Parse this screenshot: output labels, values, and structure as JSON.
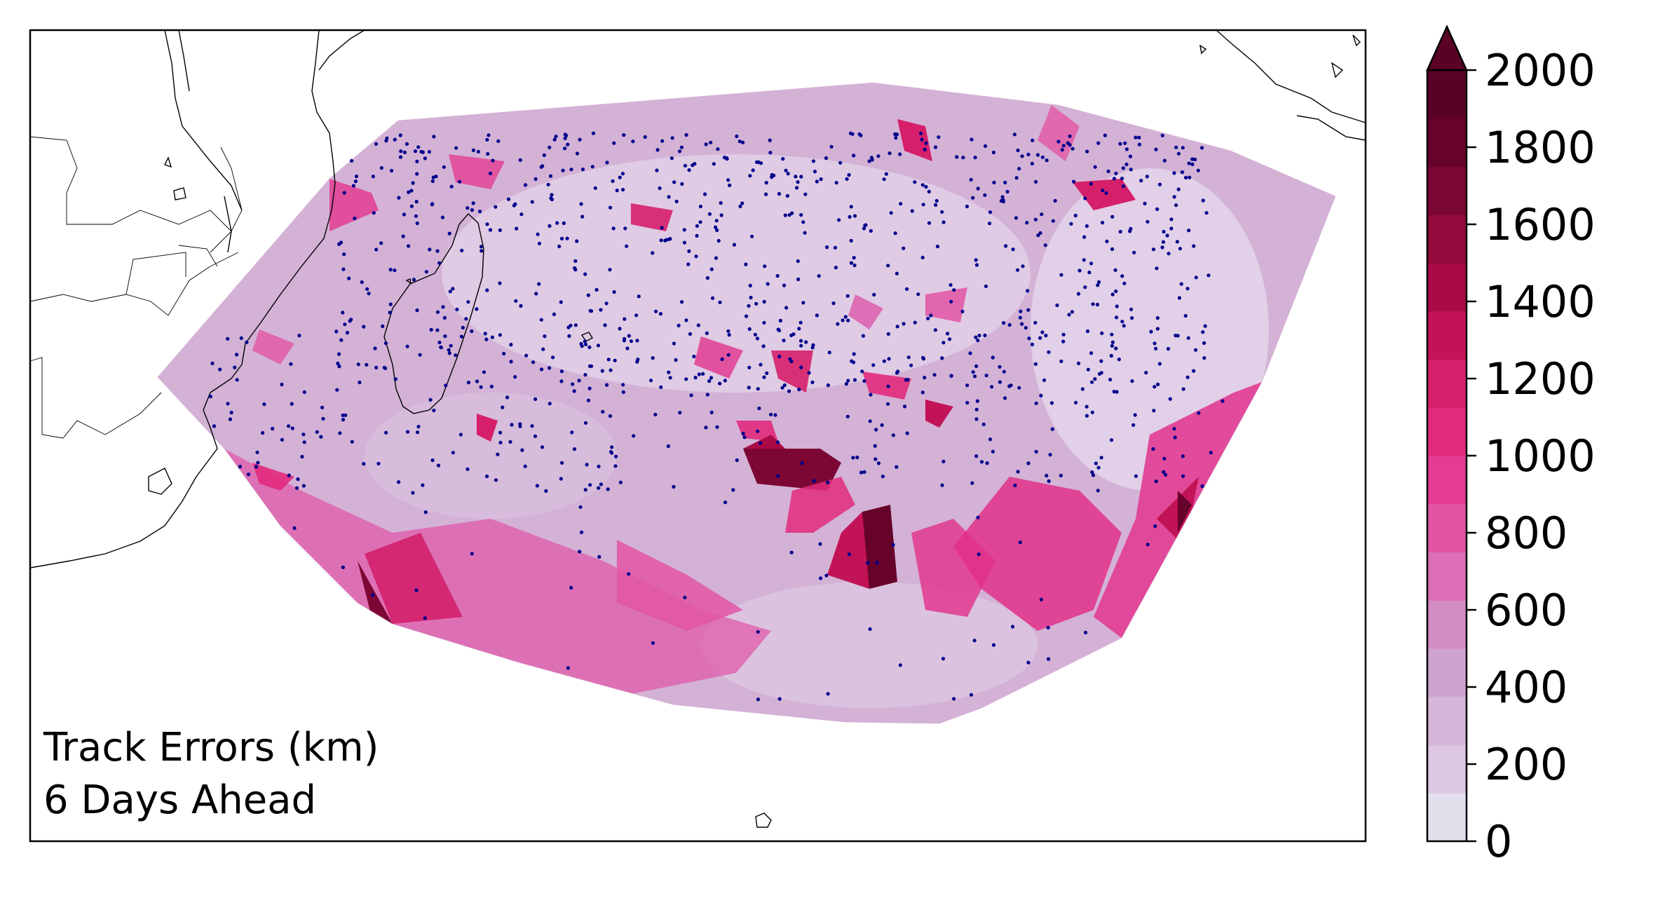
{
  "map": {
    "annotation_line1": "Track Errors (km)",
    "annotation_line2": "6 Days Ahead",
    "point_color": "#00008b",
    "coastline_color": "#000000",
    "region": "South-West Indian Ocean",
    "colormap": "RdPu-like (light lavender to dark maroon)"
  },
  "colorbar": {
    "min": 0,
    "max": 2000,
    "extend": "max",
    "ticks": [
      "0",
      "200",
      "400",
      "600",
      "800",
      "1000",
      "1200",
      "1400",
      "1600",
      "1800",
      "2000"
    ],
    "colors": [
      "#e3e0ee",
      "#dcc8e0",
      "#d5b6d8",
      "#cea4cf",
      "#d48cc4",
      "#dc6fb6",
      "#e255a4",
      "#e33c92",
      "#e22a7d",
      "#d61f6a",
      "#c21357",
      "#aa0b47",
      "#940a3d",
      "#7d0734",
      "#67022b",
      "#5a0126"
    ]
  },
  "chart_data": {
    "type": "heatmap",
    "title": "",
    "xlabel": "",
    "ylabel": "",
    "value_range": [
      0,
      2000
    ],
    "legend": "colorbar-right"
  }
}
